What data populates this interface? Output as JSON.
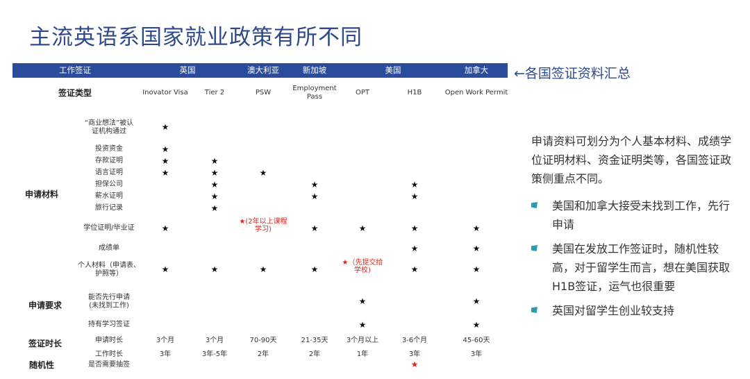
{
  "title": "主流英语系国家就业政策有所不同",
  "summary_label": "←各国签证资料汇总",
  "table": {
    "header": [
      "工作签证",
      "英国",
      "澳大利亚",
      "新加坡",
      "美国",
      "加拿大"
    ],
    "visa_type_label": "签证类型",
    "visa_types": [
      "Inovator Visa",
      "Tier 2",
      "PSW",
      "Employment\nPass",
      "OPT",
      "H1B",
      "Open Work Permit"
    ],
    "categories": [
      "申请材料",
      "申请要求",
      "签证时长",
      "随机性"
    ],
    "rows": [
      {
        "label": "“商业想法”被认\n证机构通过",
        "marks": [
          1,
          0,
          0,
          0,
          0,
          0,
          0
        ]
      },
      {
        "label": "投资资金",
        "marks": [
          1,
          0,
          0,
          0,
          0,
          0,
          0
        ]
      },
      {
        "label": "存款证明",
        "marks": [
          1,
          1,
          0,
          0,
          0,
          0,
          0
        ]
      },
      {
        "label": "语言证明",
        "marks": [
          1,
          1,
          1,
          0,
          0,
          0,
          0
        ]
      },
      {
        "label": "担保公司",
        "marks": [
          0,
          1,
          0,
          1,
          0,
          1,
          0
        ]
      },
      {
        "label": "薪水证明",
        "marks": [
          0,
          1,
          0,
          1,
          0,
          1,
          0
        ]
      },
      {
        "label": "旅行记录",
        "marks": [
          0,
          1,
          0,
          0,
          0,
          0,
          0
        ]
      },
      {
        "label": "学位证明/毕业证",
        "marks": [
          1,
          0,
          0,
          1,
          1,
          1,
          1
        ],
        "note_psw": "★(2年以上课程\n学习)"
      },
      {
        "label": "成绩单",
        "marks": [
          0,
          0,
          0,
          0,
          0,
          1,
          1
        ]
      },
      {
        "label": "个人材料（申请表、\n护照等）",
        "marks": [
          1,
          1,
          1,
          1,
          0,
          1,
          1
        ],
        "note_opt": "★（先提交给\n学校)"
      },
      {
        "label": "能否先行申请\n(未找到工作)",
        "marks": [
          0,
          0,
          0,
          0,
          1,
          0,
          1
        ]
      },
      {
        "label": "持有学习签证",
        "marks": [
          0,
          0,
          0,
          0,
          1,
          0,
          1
        ]
      }
    ],
    "duration_rows": [
      {
        "label": "申请时长",
        "values": [
          "3个月",
          "3个月",
          "70-90天",
          "21-35天",
          "3个月以上",
          "3-6个月",
          "45-60天"
        ]
      },
      {
        "label": "工作时长",
        "values": [
          "3年",
          "3年-5年",
          "2年",
          "2年",
          "1年",
          "3年",
          "3年"
        ]
      }
    ],
    "random_row": {
      "label": "是否需要抽签",
      "marks": [
        0,
        0,
        0,
        0,
        0,
        1,
        0
      ]
    },
    "star": "★"
  },
  "right": {
    "paragraph": "申请资料可划分为个人基本材料、成绩学位证明材料、资金证明类等，各国签证政策侧重点不同。",
    "bullets": [
      "美国和加拿大接受未找到工作，先行申请",
      "美国在发放工作签证时，随机性较高，对于留学生而言，想在美国获取H1B签证，运气也很重要",
      "英国对留学生创业较支持"
    ]
  },
  "colors": {
    "header_bg": "#2b4c9b",
    "title": "#2f4a8a",
    "accent_red": "#e0251b",
    "bullet": "#2a9bb0"
  }
}
